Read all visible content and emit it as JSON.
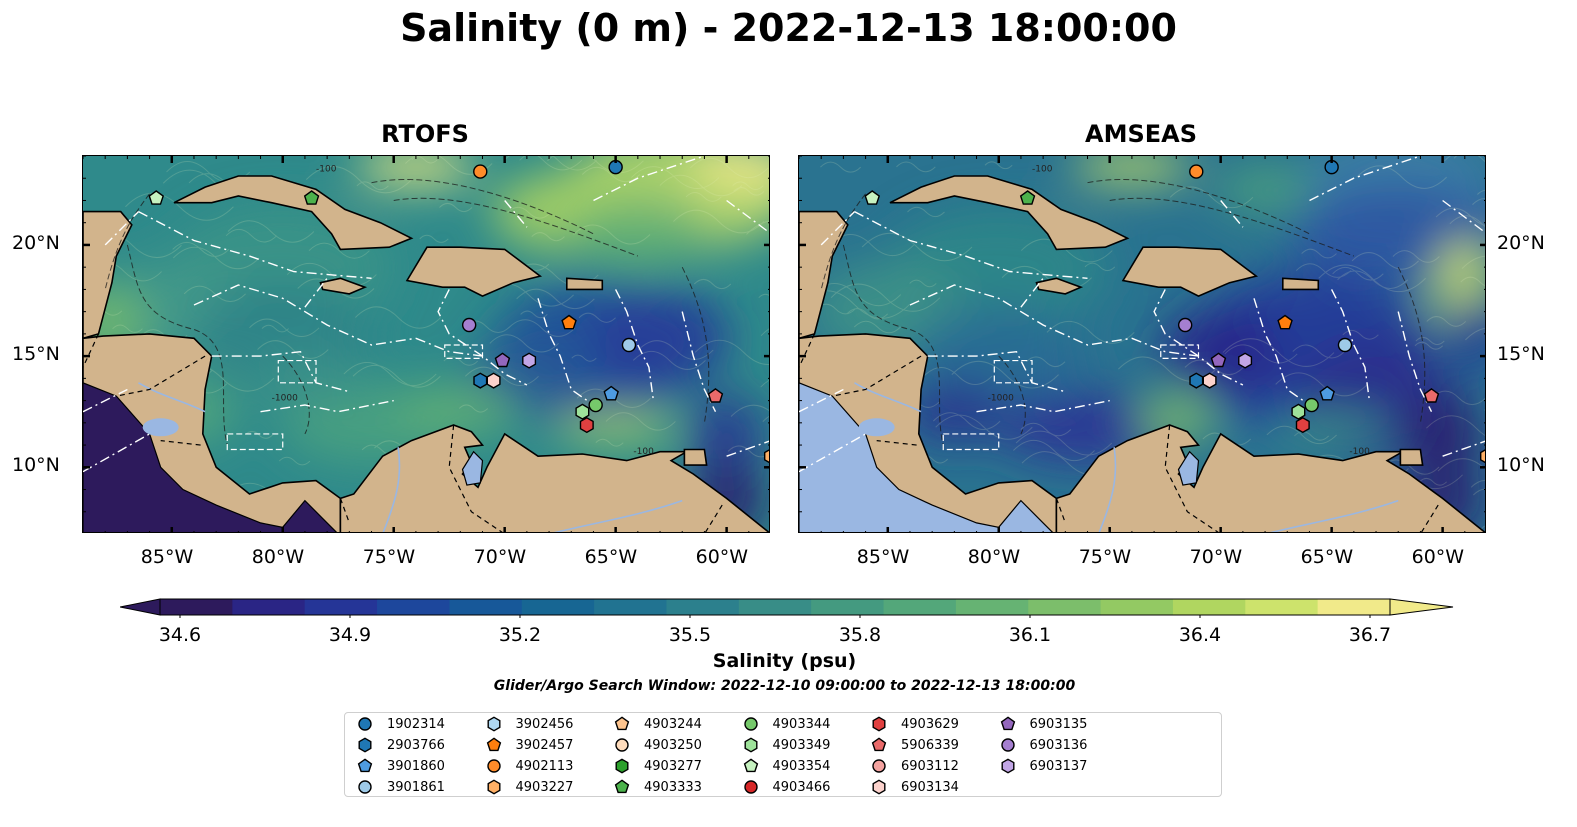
{
  "title": "Salinity (0 m) - 2022-12-13 18:00:00",
  "panels": [
    {
      "id": "rtofs",
      "title": "RTOFS"
    },
    {
      "id": "amseas",
      "title": "AMSEAS"
    }
  ],
  "axes": {
    "lon_ticks": [
      "85°W",
      "80°W",
      "75°W",
      "70°W",
      "65°W",
      "60°W"
    ],
    "lat_ticks": [
      "20°N",
      "15°N",
      "10°N"
    ]
  },
  "colorbar": {
    "ticks": [
      "34.6",
      "34.9",
      "35.2",
      "35.5",
      "35.8",
      "36.1",
      "36.4",
      "36.7"
    ],
    "label": "Salinity (psu)",
    "min": 34.6,
    "max": 36.7,
    "colors": [
      "#2d1a5c",
      "#2a2585",
      "#253597",
      "#1d479c",
      "#175899",
      "#176693",
      "#217391",
      "#2c808d",
      "#388d87",
      "#449a80",
      "#53a77a",
      "#66b373",
      "#7cbe6b",
      "#93c963",
      "#b0d660",
      "#cde36c",
      "#f1ea8a"
    ]
  },
  "search_window": "Glider/Argo Search Window: 2022-12-10 09:00:00 to 2022-12-13 18:00:00",
  "contour_labels": [
    "-100",
    "-1000"
  ],
  "legend": [
    {
      "id": "1902314",
      "marker": "circle",
      "color": "#1f77b4"
    },
    {
      "id": "2903766",
      "marker": "hexagon",
      "color": "#1f77b4"
    },
    {
      "id": "3901860",
      "marker": "pentagon",
      "color": "#4e9be0"
    },
    {
      "id": "3901861",
      "marker": "circle",
      "color": "#9ecae8"
    },
    {
      "id": "3902456",
      "marker": "hexagon",
      "color": "#aed8f2"
    },
    {
      "id": "3902457",
      "marker": "pentagon",
      "color": "#ff7f0e"
    },
    {
      "id": "4902113",
      "marker": "circle",
      "color": "#ff8c2a"
    },
    {
      "id": "4903227",
      "marker": "hexagon",
      "color": "#ffb066"
    },
    {
      "id": "4903244",
      "marker": "pentagon",
      "color": "#ffc58f"
    },
    {
      "id": "4903250",
      "marker": "circle",
      "color": "#ffdcbc"
    },
    {
      "id": "4903277",
      "marker": "hexagon",
      "color": "#2ca02c"
    },
    {
      "id": "4903333",
      "marker": "pentagon",
      "color": "#4cb24c"
    },
    {
      "id": "4903344",
      "marker": "circle",
      "color": "#76c96b"
    },
    {
      "id": "4903349",
      "marker": "hexagon",
      "color": "#9ee29a"
    },
    {
      "id": "4903354",
      "marker": "pentagon",
      "color": "#c6f2c0"
    },
    {
      "id": "4903466",
      "marker": "circle",
      "color": "#d62728"
    },
    {
      "id": "4903629",
      "marker": "hexagon",
      "color": "#e04040"
    },
    {
      "id": "5906339",
      "marker": "pentagon",
      "color": "#ea6a6a"
    },
    {
      "id": "6903112",
      "marker": "circle",
      "color": "#f4a3a0"
    },
    {
      "id": "6903134",
      "marker": "hexagon",
      "color": "#fcd2cc"
    },
    {
      "id": "6903135",
      "marker": "pentagon",
      "color": "#9467bd"
    },
    {
      "id": "6903136",
      "marker": "circle",
      "color": "#a57fd0"
    },
    {
      "id": "6903137",
      "marker": "hexagon",
      "color": "#c2a6e6"
    }
  ],
  "float_positions": [
    {
      "id": "1902314",
      "lon": -65.0,
      "lat": 23.5
    },
    {
      "id": "4902113",
      "lon": -71.1,
      "lat": 23.3
    },
    {
      "id": "4903333",
      "lon": -78.7,
      "lat": 22.1
    },
    {
      "id": "4903354",
      "lon": -85.7,
      "lat": 22.1
    },
    {
      "id": "3902457",
      "lon": -67.1,
      "lat": 16.5
    },
    {
      "id": "6903136",
      "lon": -71.6,
      "lat": 16.4
    },
    {
      "id": "3901861",
      "lon": -64.4,
      "lat": 15.5
    },
    {
      "id": "6903135",
      "lon": -70.1,
      "lat": 14.8
    },
    {
      "id": "6903137",
      "lon": -68.9,
      "lat": 14.8
    },
    {
      "id": "2903766",
      "lon": -71.1,
      "lat": 13.9
    },
    {
      "id": "6903134",
      "lon": -70.5,
      "lat": 13.9
    },
    {
      "id": "3901860",
      "lon": -65.2,
      "lat": 13.3
    },
    {
      "id": "5906339",
      "lon": -60.5,
      "lat": 13.2
    },
    {
      "id": "4903344",
      "lon": -65.9,
      "lat": 12.8
    },
    {
      "id": "4903349",
      "lon": -66.5,
      "lat": 12.5
    },
    {
      "id": "4903629",
      "lon": -66.3,
      "lat": 11.9
    },
    {
      "id": "4903227",
      "lon": -58.0,
      "lat": 10.5
    }
  ],
  "map_extent": {
    "lon_min": -89,
    "lon_max": -58,
    "lat_min": 7,
    "lat_max": 24
  }
}
